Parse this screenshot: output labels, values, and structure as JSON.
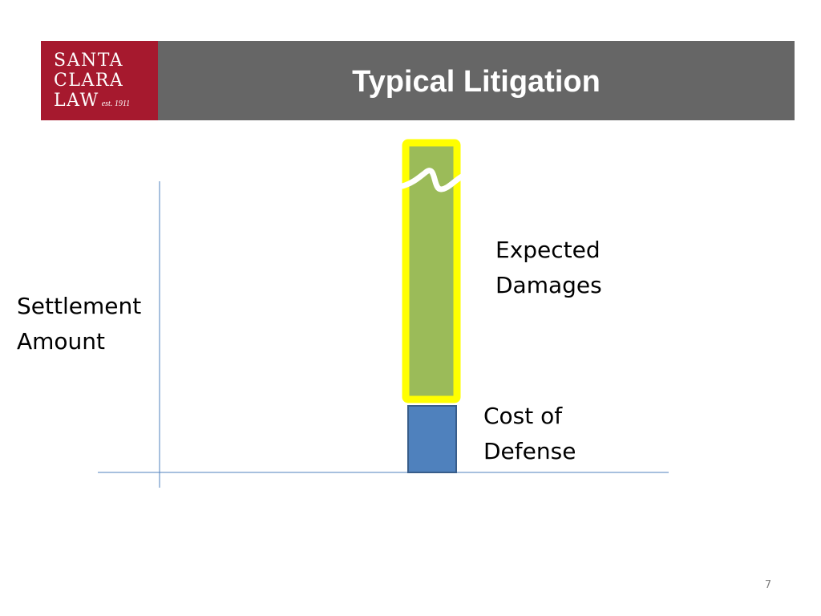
{
  "slide": {
    "title": "Typical Litigation",
    "page_number": "7"
  },
  "logo": {
    "line1": "SANTA",
    "line2": "CLARA",
    "line3": "LAW",
    "established": "est. 1911",
    "background_color": "#a6192e"
  },
  "header": {
    "background_color": "#666666"
  },
  "diagram": {
    "y_axis_label_line1": "Settlement",
    "y_axis_label_line2": "Amount",
    "stacked_bar": [
      {
        "label_line1": "Cost of",
        "label_line2": "Defense",
        "fill_color": "#4f81bd",
        "border_color": "#385d8a"
      },
      {
        "label_line1": "Expected",
        "label_line2": "Damages",
        "fill_color": "#9bbb59",
        "border_color": "#ffff00",
        "highlighted": true,
        "axis_break": true
      }
    ],
    "axis_color": "#4f81bd"
  }
}
